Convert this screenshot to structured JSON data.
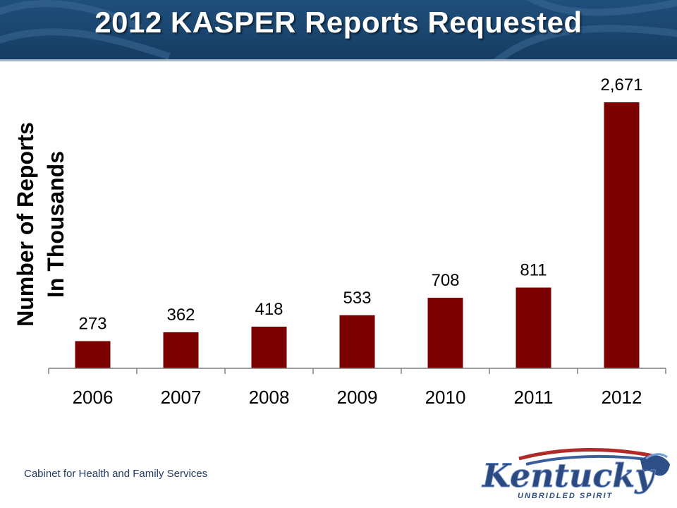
{
  "header": {
    "title": "2012 KASPER Reports Requested"
  },
  "footer": {
    "org": "Cabinet for Health and Family Services"
  },
  "logo": {
    "wordmark": "Kentucky",
    "tagline": "UNBRIDLED SPIRIT"
  },
  "colors": {
    "header_bg": "#1b4670",
    "bar": "#7b0000",
    "text": "#000000"
  },
  "chart_data": {
    "type": "bar",
    "title": "2012 KASPER Reports Requested",
    "categories": [
      "2006",
      "2007",
      "2008",
      "2009",
      "2010",
      "2011",
      "2012"
    ],
    "values": [
      273,
      362,
      418,
      533,
      708,
      811,
      2671
    ],
    "value_labels": [
      "273",
      "362",
      "418",
      "533",
      "708",
      "811",
      "2,671"
    ],
    "ylabel": [
      "Number of Reports",
      "In Thousands"
    ],
    "ylim": [
      0,
      2671
    ],
    "grid": false,
    "legend": "none"
  }
}
